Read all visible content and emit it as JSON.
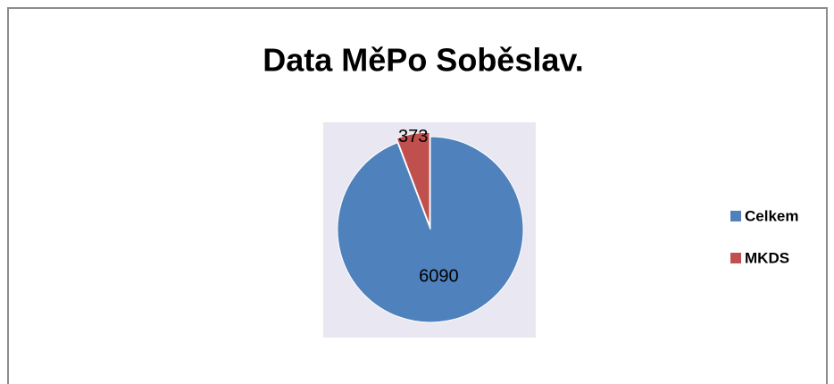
{
  "chart_data": {
    "type": "pie",
    "title": "Data MěPo Soběslav.",
    "categories": [
      "Celkem",
      "MKDS"
    ],
    "values": [
      6090,
      373
    ],
    "colors": [
      "#4f81bd",
      "#c0504d"
    ],
    "legend": "right"
  }
}
